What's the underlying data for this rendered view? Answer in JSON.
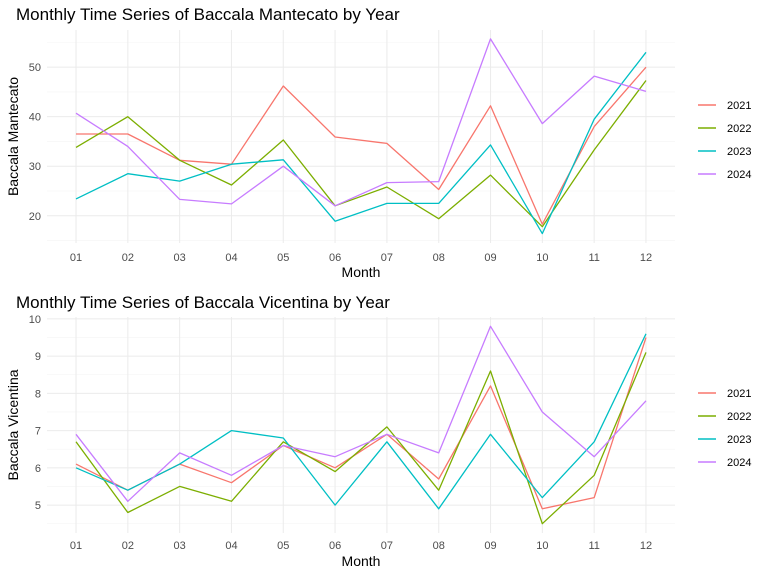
{
  "chart_data": [
    {
      "type": "line",
      "title": "Monthly Time Series of Baccala Mantecato by Year",
      "xlabel": "Month",
      "ylabel": "Baccala Mantecato",
      "categories": [
        "01",
        "02",
        "03",
        "04",
        "05",
        "06",
        "07",
        "08",
        "09",
        "10",
        "11",
        "12"
      ],
      "ylim": [
        14.5,
        57.5
      ],
      "yticks": [
        20,
        30,
        40,
        50
      ],
      "grid": true,
      "legend": "right",
      "series": [
        {
          "name": "2021",
          "color": "#F8766D",
          "values": [
            36.5,
            36.5,
            31.2,
            30.4,
            46.2,
            35.9,
            34.6,
            25.3,
            42.2,
            18.3,
            38.0,
            50.0
          ]
        },
        {
          "name": "2022",
          "color": "#7CAE00",
          "values": [
            33.8,
            40.0,
            31.2,
            26.2,
            35.3,
            22.0,
            25.8,
            19.4,
            28.2,
            17.8,
            33.3,
            47.3
          ]
        },
        {
          "name": "2023",
          "color": "#00BFC4",
          "values": [
            23.4,
            28.5,
            27.0,
            30.4,
            31.3,
            18.9,
            22.5,
            22.5,
            34.3,
            16.4,
            39.5,
            53.0
          ]
        },
        {
          "name": "2024",
          "color": "#C77CFF",
          "values": [
            40.7,
            34.0,
            23.3,
            22.4,
            30.0,
            22.0,
            26.7,
            26.9,
            55.7,
            38.6,
            48.2,
            45.1
          ]
        }
      ]
    },
    {
      "type": "line",
      "title": "Monthly Time Series of Baccala Vicentina by Year",
      "xlabel": "Month",
      "ylabel": "Baccala Vicentina",
      "categories": [
        "01",
        "02",
        "03",
        "04",
        "05",
        "06",
        "07",
        "08",
        "09",
        "10",
        "11",
        "12"
      ],
      "ylim": [
        4.25,
        10.05
      ],
      "yticks": [
        5,
        6,
        7,
        8,
        9,
        10
      ],
      "grid": true,
      "legend": "right",
      "series": [
        {
          "name": "2021",
          "color": "#F8766D",
          "values": [
            6.1,
            5.4,
            6.1,
            5.6,
            6.6,
            6.0,
            6.9,
            5.7,
            8.2,
            4.9,
            5.2,
            9.5
          ]
        },
        {
          "name": "2022",
          "color": "#7CAE00",
          "values": [
            6.7,
            4.8,
            5.5,
            5.1,
            6.7,
            5.9,
            7.1,
            5.4,
            8.6,
            4.5,
            5.8,
            9.1
          ]
        },
        {
          "name": "2023",
          "color": "#00BFC4",
          "values": [
            6.0,
            5.4,
            6.1,
            7.0,
            6.8,
            5.0,
            6.7,
            4.9,
            6.9,
            5.2,
            6.7,
            9.6
          ]
        },
        {
          "name": "2024",
          "color": "#C77CFF",
          "values": [
            6.9,
            5.1,
            6.4,
            5.8,
            6.6,
            6.3,
            6.9,
            6.4,
            9.8,
            7.5,
            6.3,
            7.8
          ]
        }
      ]
    }
  ]
}
